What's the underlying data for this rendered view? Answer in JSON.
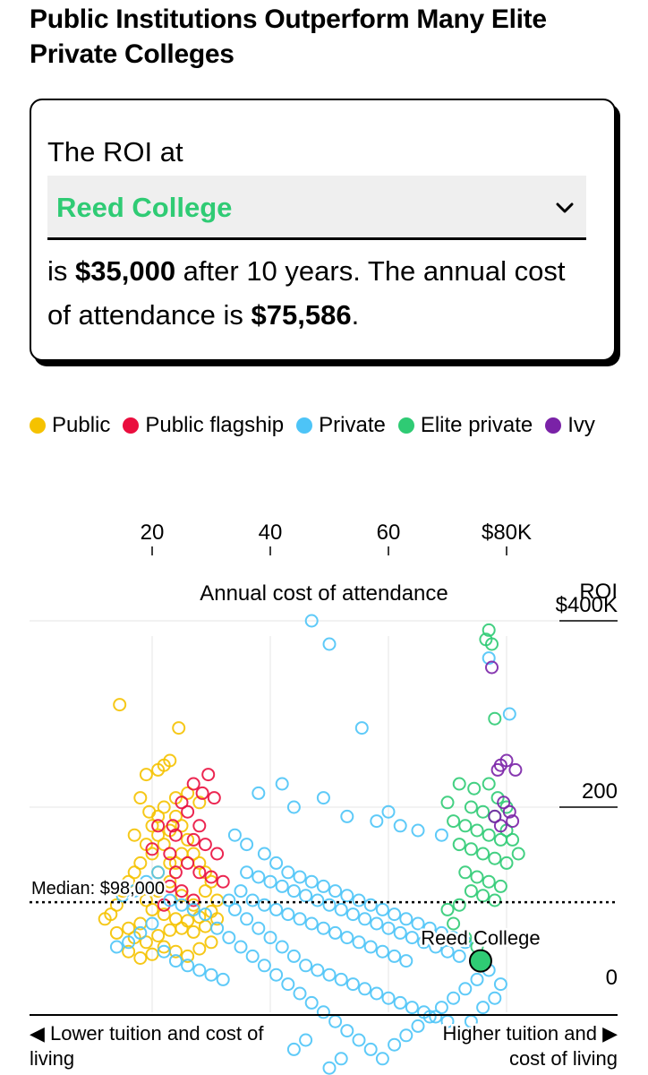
{
  "headline": "Public Institutions Outperform Many Elite Private Colleges",
  "selector": {
    "prefix": "The ROI at",
    "selected": "Reed College",
    "selected_color": "#2fcb74"
  },
  "result": {
    "part1": "is ",
    "roi": "$35,000",
    "part2": " after 10 years. The annual cost of attendance is ",
    "cost": "$75,586",
    "part3": "."
  },
  "legend": [
    {
      "label": "Public",
      "color": "#f5c200"
    },
    {
      "label": "Public flagship",
      "color": "#ea0e3e"
    },
    {
      "label": "Private",
      "color": "#4dc4f7"
    },
    {
      "label": "Elite private",
      "color": "#2fcb74"
    },
    {
      "label": "Ivy",
      "color": "#7a22a7"
    }
  ],
  "chart_data": {
    "type": "scatter",
    "x_label": "Annual cost of attendance",
    "y_label_title": "ROI",
    "x_ticks": [
      {
        "value": 20,
        "label": "20"
      },
      {
        "value": 40,
        "label": "40"
      },
      {
        "value": 60,
        "label": "60"
      },
      {
        "value": 80,
        "label": "$80K"
      }
    ],
    "y_ticks": [
      {
        "value": 0,
        "label": "0"
      },
      {
        "value": 200,
        "label": "200"
      },
      {
        "value": 400,
        "label": "$400K"
      }
    ],
    "x_range": [
      4,
      82
    ],
    "y_range": [
      -90,
      400
    ],
    "median": {
      "value": 98,
      "label": "Median: $98,000"
    },
    "highlight": {
      "label": "Reed College",
      "x": 75.6,
      "y": 35,
      "series": "Elite private"
    },
    "footer_left": "◀ Lower tuition and cost of living",
    "footer_right": "Higher tuition and ▶ cost of living",
    "series": [
      {
        "name": "Public",
        "color": "#f5c200",
        "points": [
          [
            14.5,
            310
          ],
          [
            24.5,
            285
          ],
          [
            23,
            250
          ],
          [
            21,
            240
          ],
          [
            22,
            245
          ],
          [
            19,
            235
          ],
          [
            18,
            210
          ],
          [
            19.5,
            195
          ],
          [
            20,
            180
          ],
          [
            21,
            170
          ],
          [
            22,
            160
          ],
          [
            23,
            175
          ],
          [
            24,
            190
          ],
          [
            25,
            180
          ],
          [
            26,
            165
          ],
          [
            27,
            150
          ],
          [
            28,
            140
          ],
          [
            29,
            130
          ],
          [
            30,
            120
          ],
          [
            24,
            140
          ],
          [
            20,
            150
          ],
          [
            18,
            140
          ],
          [
            17,
            130
          ],
          [
            16,
            120
          ],
          [
            15,
            110
          ],
          [
            14,
            95
          ],
          [
            13,
            85
          ],
          [
            12,
            80
          ],
          [
            19,
            100
          ],
          [
            21,
            110
          ],
          [
            23,
            120
          ],
          [
            25,
            105
          ],
          [
            27,
            95
          ],
          [
            29,
            110
          ],
          [
            31,
            100
          ],
          [
            20,
            90
          ],
          [
            22,
            85
          ],
          [
            24,
            80
          ],
          [
            26,
            78
          ],
          [
            28,
            82
          ],
          [
            30,
            88
          ],
          [
            18,
            75
          ],
          [
            16,
            70
          ],
          [
            14,
            65
          ],
          [
            17,
            60
          ],
          [
            19,
            55
          ],
          [
            21,
            62
          ],
          [
            23,
            68
          ],
          [
            25,
            70
          ],
          [
            27,
            66
          ],
          [
            29,
            72
          ],
          [
            31,
            80
          ],
          [
            22,
            50
          ],
          [
            24,
            45
          ],
          [
            26,
            40
          ],
          [
            28,
            48
          ],
          [
            30,
            55
          ],
          [
            20,
            42
          ],
          [
            18,
            38
          ],
          [
            16,
            45
          ],
          [
            21,
            130
          ],
          [
            23,
            140
          ],
          [
            25,
            150
          ],
          [
            19,
            160
          ],
          [
            17,
            170
          ],
          [
            22,
            200
          ],
          [
            24,
            210
          ],
          [
            26,
            215
          ],
          [
            28,
            205
          ],
          [
            21,
            190
          ]
        ]
      },
      {
        "name": "Public flagship",
        "color": "#ea0e3e",
        "points": [
          [
            29.5,
            235
          ],
          [
            27,
            225
          ],
          [
            28.5,
            215
          ],
          [
            30.5,
            210
          ],
          [
            25,
            205
          ],
          [
            26,
            195
          ],
          [
            23.5,
            180
          ],
          [
            24,
            170
          ],
          [
            27,
            165
          ],
          [
            29,
            160
          ],
          [
            31,
            150
          ],
          [
            26,
            140
          ],
          [
            28,
            130
          ],
          [
            30,
            125
          ],
          [
            23,
            115
          ],
          [
            25,
            110
          ],
          [
            32,
            120
          ],
          [
            27,
            100
          ],
          [
            22,
            95
          ],
          [
            24,
            130
          ],
          [
            21,
            180
          ],
          [
            20,
            155
          ],
          [
            23,
            150
          ],
          [
            28,
            180
          ]
        ]
      },
      {
        "name": "Private",
        "color": "#4dc4f7",
        "points": [
          [
            47,
            400
          ],
          [
            50,
            375
          ],
          [
            55.5,
            285
          ],
          [
            80.5,
            300
          ],
          [
            77,
            360
          ],
          [
            42,
            225
          ],
          [
            38,
            215
          ],
          [
            49,
            210
          ],
          [
            44,
            200
          ],
          [
            53,
            190
          ],
          [
            58,
            185
          ],
          [
            62,
            180
          ],
          [
            60,
            195
          ],
          [
            65,
            175
          ],
          [
            69,
            170
          ],
          [
            34,
            170
          ],
          [
            36,
            160
          ],
          [
            39,
            150
          ],
          [
            41,
            140
          ],
          [
            43,
            130
          ],
          [
            45,
            125
          ],
          [
            47,
            120
          ],
          [
            49,
            115
          ],
          [
            51,
            110
          ],
          [
            53,
            105
          ],
          [
            55,
            100
          ],
          [
            57,
            95
          ],
          [
            59,
            90
          ],
          [
            61,
            85
          ],
          [
            63,
            80
          ],
          [
            65,
            75
          ],
          [
            67,
            70
          ],
          [
            69,
            65
          ],
          [
            71,
            60
          ],
          [
            73,
            55
          ],
          [
            35,
            110
          ],
          [
            37,
            100
          ],
          [
            39,
            95
          ],
          [
            41,
            90
          ],
          [
            43,
            85
          ],
          [
            45,
            80
          ],
          [
            47,
            75
          ],
          [
            49,
            70
          ],
          [
            51,
            65
          ],
          [
            53,
            60
          ],
          [
            55,
            55
          ],
          [
            57,
            50
          ],
          [
            59,
            45
          ],
          [
            61,
            40
          ],
          [
            63,
            35
          ],
          [
            36,
            130
          ],
          [
            38,
            125
          ],
          [
            40,
            120
          ],
          [
            42,
            115
          ],
          [
            44,
            110
          ],
          [
            46,
            105
          ],
          [
            48,
            100
          ],
          [
            50,
            95
          ],
          [
            52,
            90
          ],
          [
            54,
            85
          ],
          [
            56,
            80
          ],
          [
            58,
            75
          ],
          [
            60,
            70
          ],
          [
            62,
            65
          ],
          [
            64,
            60
          ],
          [
            66,
            55
          ],
          [
            68,
            50
          ],
          [
            70,
            45
          ],
          [
            72,
            40
          ],
          [
            34,
            90
          ],
          [
            36,
            80
          ],
          [
            38,
            70
          ],
          [
            40,
            60
          ],
          [
            42,
            50
          ],
          [
            44,
            40
          ],
          [
            46,
            30
          ],
          [
            48,
            25
          ],
          [
            50,
            20
          ],
          [
            52,
            15
          ],
          [
            54,
            10
          ],
          [
            56,
            5
          ],
          [
            58,
            0
          ],
          [
            60,
            -5
          ],
          [
            62,
            -10
          ],
          [
            64,
            -15
          ],
          [
            66,
            -20
          ],
          [
            68,
            -25
          ],
          [
            70,
            -30
          ],
          [
            33,
            60
          ],
          [
            35,
            50
          ],
          [
            37,
            40
          ],
          [
            39,
            30
          ],
          [
            41,
            20
          ],
          [
            43,
            10
          ],
          [
            45,
            0
          ],
          [
            47,
            -10
          ],
          [
            49,
            -20
          ],
          [
            51,
            -30
          ],
          [
            53,
            -40
          ],
          [
            55,
            -50
          ],
          [
            57,
            -60
          ],
          [
            59,
            -70
          ],
          [
            61,
            -55
          ],
          [
            63,
            -45
          ],
          [
            65,
            -35
          ],
          [
            67,
            -25
          ],
          [
            69,
            -15
          ],
          [
            71,
            -5
          ],
          [
            73,
            5
          ],
          [
            75,
            15
          ],
          [
            77,
            25
          ],
          [
            76,
            -15
          ],
          [
            74,
            -30
          ],
          [
            72,
            -45
          ],
          [
            78,
            -5
          ],
          [
            79,
            10
          ],
          [
            50,
            -80
          ],
          [
            52,
            -70
          ],
          [
            44,
            -60
          ],
          [
            46,
            -50
          ],
          [
            20,
            75
          ],
          [
            18,
            65
          ],
          [
            16,
            55
          ],
          [
            14,
            50
          ],
          [
            22,
            45
          ],
          [
            24,
            35
          ],
          [
            26,
            30
          ],
          [
            28,
            25
          ],
          [
            30,
            20
          ],
          [
            32,
            15
          ],
          [
            21,
            130
          ],
          [
            19,
            120
          ],
          [
            17,
            110
          ],
          [
            15,
            105
          ],
          [
            23,
            100
          ],
          [
            25,
            95
          ],
          [
            27,
            90
          ],
          [
            29,
            85
          ],
          [
            31,
            70
          ],
          [
            33,
            100
          ]
        ]
      },
      {
        "name": "Elite private",
        "color": "#2fcb74",
        "points": [
          [
            77,
            390
          ],
          [
            77.5,
            375
          ],
          [
            76.5,
            380
          ],
          [
            78,
            295
          ],
          [
            72,
            225
          ],
          [
            74.5,
            220
          ],
          [
            77,
            225
          ],
          [
            78.5,
            210
          ],
          [
            71,
            185
          ],
          [
            73,
            180
          ],
          [
            75,
            175
          ],
          [
            77,
            170
          ],
          [
            79,
            165
          ],
          [
            72,
            160
          ],
          [
            74,
            155
          ],
          [
            76,
            150
          ],
          [
            78,
            145
          ],
          [
            80,
            140
          ],
          [
            73,
            130
          ],
          [
            75,
            125
          ],
          [
            77,
            120
          ],
          [
            79,
            115
          ],
          [
            74,
            110
          ],
          [
            76,
            105
          ],
          [
            78,
            100
          ],
          [
            72,
            95
          ],
          [
            70,
            90
          ],
          [
            71,
            75
          ],
          [
            73,
            60
          ],
          [
            75,
            50
          ],
          [
            81,
            165
          ],
          [
            80,
            175
          ],
          [
            78,
            190
          ],
          [
            76,
            195
          ],
          [
            74,
            200
          ],
          [
            70,
            205
          ],
          [
            80,
            200
          ],
          [
            82,
            150
          ]
        ]
      },
      {
        "name": "Ivy",
        "color": "#7a22a7",
        "points": [
          [
            77.5,
            350
          ],
          [
            79,
            245
          ],
          [
            78.5,
            240
          ],
          [
            80,
            250
          ],
          [
            81.5,
            240
          ],
          [
            79.5,
            205
          ],
          [
            80.5,
            195
          ],
          [
            78,
            190
          ],
          [
            81,
            185
          ],
          [
            79,
            180
          ]
        ]
      }
    ]
  }
}
